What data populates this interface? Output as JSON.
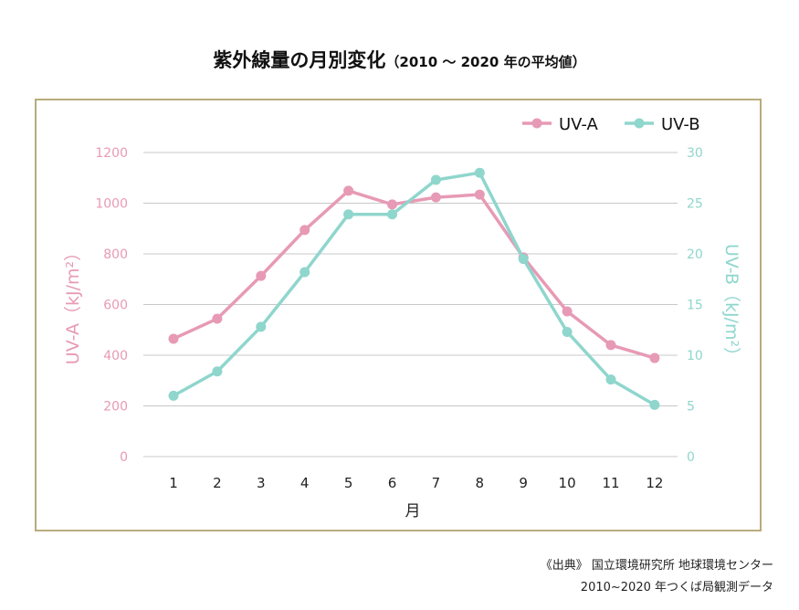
{
  "title": {
    "main": "紫外線量の月別変化",
    "sub": "（2010 ～ 2020 年の平均値）"
  },
  "source": {
    "line1": "《出典》 国立環境研究所 地球環境センター",
    "line2": "2010~2020 年つくば局観測データ"
  },
  "chart_data": {
    "type": "line",
    "title": "紫外線量の月別変化（2010 ～ 2020 年の平均値）",
    "xlabel": "月",
    "categories": [
      "1",
      "2",
      "3",
      "4",
      "5",
      "6",
      "7",
      "8",
      "9",
      "10",
      "11",
      "12"
    ],
    "y_left": {
      "label": "UV-A（kJ/m²）",
      "ylim": [
        0,
        1200
      ],
      "ticks": [
        "0",
        "200",
        "400",
        "600",
        "800",
        "1000",
        "1200"
      ],
      "color": "#e79ab5"
    },
    "y_right": {
      "label": "UV-B（kJ/m²）",
      "ylim": [
        0,
        30
      ],
      "ticks": [
        "0",
        "5",
        "10",
        "15",
        "20",
        "25",
        "30"
      ],
      "color": "#8fd6cd"
    },
    "grid": true,
    "legend": "top-right",
    "series": [
      {
        "name": "UV-A",
        "axis": "left",
        "color": "#e79ab5",
        "values": [
          465,
          544,
          713,
          894,
          1049,
          995,
          1023,
          1034,
          786,
          573,
          440,
          389
        ]
      },
      {
        "name": "UV-B",
        "axis": "right",
        "color": "#8fd6cd",
        "values": [
          6.0,
          8.4,
          12.8,
          18.2,
          23.9,
          23.9,
          27.3,
          28.0,
          19.5,
          12.3,
          7.6,
          5.1
        ]
      }
    ]
  }
}
